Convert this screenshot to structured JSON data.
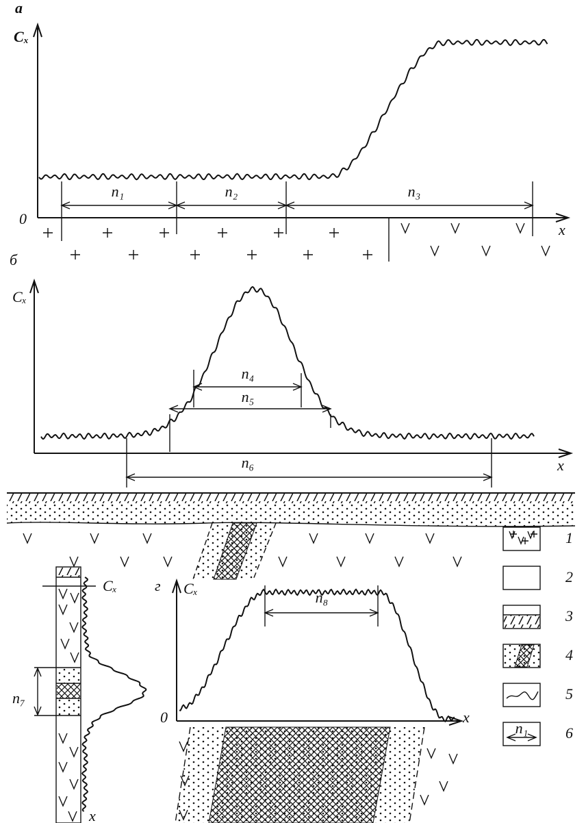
{
  "panels": {
    "a": {
      "label": "а",
      "y_axis": "Cₓ",
      "x_axis": "x",
      "origin": "0",
      "intervals": [
        "n₁",
        "n₂",
        "n₃"
      ]
    },
    "b": {
      "label": "б",
      "y_axis": "Cₓ",
      "x_axis": "x",
      "intervals": [
        "n₄",
        "n₅",
        "n₆"
      ]
    },
    "c": {
      "y_axis": "Cₓ",
      "x_axis": "x",
      "interval": "n₇"
    },
    "d": {
      "label": "г",
      "y_axis": "Cₓ",
      "x_axis": "x",
      "origin": "0",
      "interval": "n₈"
    }
  },
  "legend": [
    {
      "number": "1"
    },
    {
      "number": "2"
    },
    {
      "number": "3"
    },
    {
      "number": "4"
    },
    {
      "number": "5"
    },
    {
      "number": "6",
      "symbol_label": "n₁"
    }
  ]
}
